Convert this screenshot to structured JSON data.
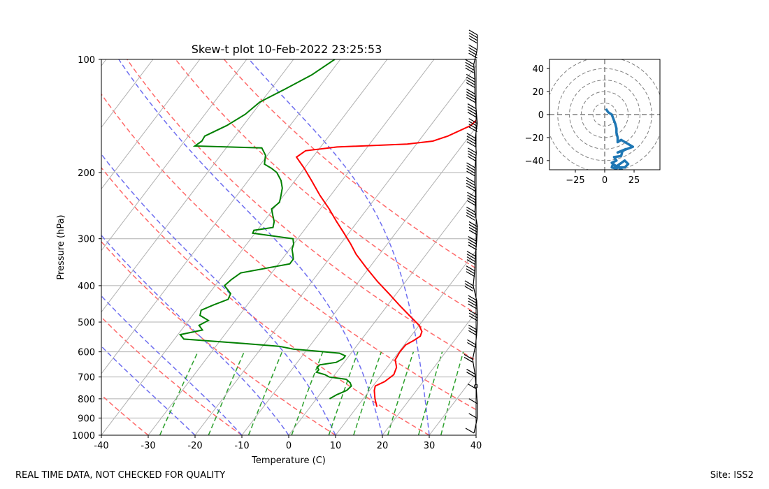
{
  "chart_data": [
    {
      "type": "line",
      "subtype": "skew-t",
      "title": "Skew-t plot 10-Feb-2022 23:25:53",
      "xlabel": "Temperature (C)",
      "ylabel": "Pressure (hPa)",
      "xlim": [
        -40,
        40
      ],
      "ylim": [
        1000,
        100
      ],
      "yscale": "log",
      "x_ticks": [
        -40,
        -30,
        -20,
        -10,
        0,
        10,
        20,
        30,
        40
      ],
      "y_ticks": [
        1000,
        900,
        800,
        700,
        600,
        500,
        400,
        300,
        200,
        100
      ],
      "dry_adiabats_theta_C": [
        -30,
        -10,
        10,
        30,
        50,
        70,
        90,
        110
      ],
      "moist_adiabats_start_C": [
        -20,
        -10,
        0,
        10,
        20,
        30
      ],
      "mixing_ratio_lines_gkg": [
        0.4,
        1,
        2,
        4,
        7,
        10,
        16,
        24,
        32
      ],
      "series": [
        {
          "name": "Temperature",
          "color": "#ff0000",
          "pressure": [
            840,
            800,
            760,
            740,
            720,
            690,
            660,
            630,
            600,
            575,
            560,
            545,
            530,
            510,
            480,
            450,
            420,
            390,
            360,
            330,
            310,
            290,
            270,
            250,
            230,
            210,
            195,
            182,
            175,
            171,
            168,
            165,
            160,
            150,
            140,
            130,
            125,
            120,
            110,
            104,
            100
          ],
          "temp": [
            14.2,
            12.5,
            11.0,
            10.5,
            11.8,
            12.6,
            12.0,
            10.5,
            10.2,
            10.3,
            11.3,
            12.0,
            11.6,
            10.0,
            6.3,
            2.4,
            -1.6,
            -6.0,
            -10.4,
            -15.0,
            -17.8,
            -21.0,
            -24.5,
            -28.1,
            -32.3,
            -36.5,
            -40.0,
            -43.5,
            -42.6,
            -36.5,
            -22.0,
            -17.0,
            -14.6,
            -11.4,
            -10.8,
            -8.2,
            -5.3,
            -3.9,
            -0.6,
            0.4,
            0.6
          ]
        },
        {
          "name": "Dewpoint",
          "color": "#008000",
          "pressure": [
            800,
            780,
            760,
            740,
            725,
            710,
            700,
            690,
            680,
            670,
            660,
            650,
            640,
            625,
            615,
            605,
            598,
            590,
            580,
            570,
            555,
            540,
            525,
            510,
            495,
            480,
            465,
            450,
            435,
            420,
            400,
            385,
            370,
            350,
            340,
            330,
            320,
            310,
            300,
            290,
            285,
            280,
            270,
            260,
            250,
            240,
            230,
            220,
            210,
            200,
            195,
            190,
            180,
            172,
            170,
            165,
            160,
            150,
            140,
            130,
            120,
            110,
            100
          ],
          "temp": [
            2.8,
            3.7,
            5.1,
            5.4,
            4.6,
            3.2,
            -0.8,
            -2.1,
            -4.3,
            -4.2,
            -4.9,
            -4.8,
            -1.7,
            -0.8,
            -0.8,
            -2.5,
            -7.2,
            -13.0,
            -16.5,
            -24.4,
            -38.0,
            -39.5,
            -35.5,
            -37.0,
            -35.8,
            -38.4,
            -39.0,
            -37.2,
            -35.0,
            -35.4,
            -38.0,
            -37.5,
            -36.6,
            -27.6,
            -27.6,
            -28.5,
            -29.5,
            -30.0,
            -31.0,
            -40.5,
            -40.7,
            -37.1,
            -37.8,
            -39.1,
            -40.4,
            -39.8,
            -40.6,
            -41.5,
            -43.0,
            -45.2,
            -47.0,
            -49.2,
            -50.4,
            -52.4,
            -67.0,
            -66.3,
            -66.5,
            -63.5,
            -61.4,
            -60.3,
            -57.0,
            -53.6,
            -51.2
          ]
        }
      ],
      "wind_barbs_hodograph": {
        "xlim": [
          -47,
          47
        ],
        "ylim": [
          -48,
          48
        ],
        "x_ticks": [
          -25,
          0,
          25
        ],
        "y_ticks": [
          -40,
          -20,
          0,
          20,
          40
        ],
        "ring_radii": [
          10,
          20,
          30,
          40,
          50
        ],
        "color": "#1f77b4",
        "u": [
          1,
          3,
          6,
          9,
          10,
          10,
          11,
          11,
          14,
          24,
          11,
          18,
          15,
          14,
          8,
          10,
          6,
          10,
          17,
          20,
          17,
          10,
          7,
          6,
          10,
          12,
          13,
          15
        ],
        "v": [
          5,
          2,
          0,
          -8,
          -12,
          -16,
          -20,
          -24,
          -22,
          -28,
          -33,
          -30,
          -32,
          -36,
          -37,
          -40,
          -42,
          -45,
          -40,
          -43,
          -46,
          -46,
          -43,
          -46,
          -47,
          -45,
          -48,
          -47
        ]
      }
    }
  ],
  "footer": {
    "left": "REAL TIME DATA, NOT CHECKED FOR QUALITY",
    "right": "Site: ISS2"
  }
}
